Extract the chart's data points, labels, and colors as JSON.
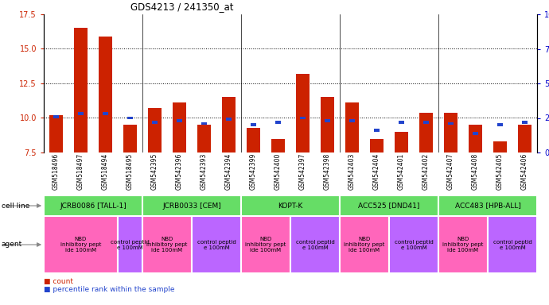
{
  "title": "GDS4213 / 241350_at",
  "samples": [
    "GSM518496",
    "GSM518497",
    "GSM518494",
    "GSM518495",
    "GSM542395",
    "GSM542396",
    "GSM542393",
    "GSM542394",
    "GSM542399",
    "GSM542400",
    "GSM542397",
    "GSM542398",
    "GSM542403",
    "GSM542404",
    "GSM542401",
    "GSM542402",
    "GSM542407",
    "GSM542408",
    "GSM542405",
    "GSM542406"
  ],
  "red_values": [
    10.2,
    16.5,
    15.9,
    9.5,
    10.7,
    11.1,
    9.5,
    11.5,
    9.3,
    8.5,
    13.2,
    11.5,
    11.1,
    8.5,
    9.0,
    10.4,
    10.4,
    9.5,
    8.3,
    9.5
  ],
  "blue_percentiles": [
    26,
    28,
    28,
    25,
    22,
    23,
    21,
    24,
    20,
    22,
    25,
    23,
    23,
    16,
    22,
    22,
    21,
    14,
    20,
    22
  ],
  "ylim_left": [
    7.5,
    17.5
  ],
  "ylim_right": [
    0,
    100
  ],
  "yticks_left": [
    7.5,
    10.0,
    12.5,
    15.0,
    17.5
  ],
  "yticks_right": [
    0,
    25,
    50,
    75,
    100
  ],
  "cell_lines": [
    {
      "label": "JCRB0086 [TALL-1]",
      "start": 0,
      "end": 4,
      "color": "#66dd66"
    },
    {
      "label": "JCRB0033 [CEM]",
      "start": 4,
      "end": 8,
      "color": "#66dd66"
    },
    {
      "label": "KOPT-K",
      "start": 8,
      "end": 12,
      "color": "#66dd66"
    },
    {
      "label": "ACC525 [DND41]",
      "start": 12,
      "end": 16,
      "color": "#66dd66"
    },
    {
      "label": "ACC483 [HPB-ALL]",
      "start": 16,
      "end": 20,
      "color": "#66dd66"
    }
  ],
  "agents": [
    {
      "label": "NBD\ninhibitory pept\nide 100mM",
      "start": 0,
      "end": 3,
      "color": "#ff66bb"
    },
    {
      "label": "control peptid\ne 100mM",
      "start": 3,
      "end": 4,
      "color": "#bb66ff"
    },
    {
      "label": "NBD\ninhibitory pept\nide 100mM",
      "start": 4,
      "end": 6,
      "color": "#ff66bb"
    },
    {
      "label": "control peptid\ne 100mM",
      "start": 6,
      "end": 8,
      "color": "#bb66ff"
    },
    {
      "label": "NBD\ninhibitory pept\nide 100mM",
      "start": 8,
      "end": 10,
      "color": "#ff66bb"
    },
    {
      "label": "control peptid\ne 100mM",
      "start": 10,
      "end": 12,
      "color": "#bb66ff"
    },
    {
      "label": "NBD\ninhibitory pept\nide 100mM",
      "start": 12,
      "end": 14,
      "color": "#ff66bb"
    },
    {
      "label": "control peptid\ne 100mM",
      "start": 14,
      "end": 16,
      "color": "#bb66ff"
    },
    {
      "label": "NBD\ninhibitory pept\nide 100mM",
      "start": 16,
      "end": 18,
      "color": "#ff66bb"
    },
    {
      "label": "control peptid\ne 100mM",
      "start": 18,
      "end": 20,
      "color": "#bb66ff"
    }
  ],
  "bar_width": 0.55,
  "bar_color": "#cc2200",
  "blue_color": "#2244cc",
  "tick_color_left": "#cc2200",
  "tick_color_right": "#0000cc",
  "dotted_lines": [
    10.0,
    12.5,
    15.0
  ],
  "group_separators": [
    4,
    8,
    12,
    16
  ]
}
